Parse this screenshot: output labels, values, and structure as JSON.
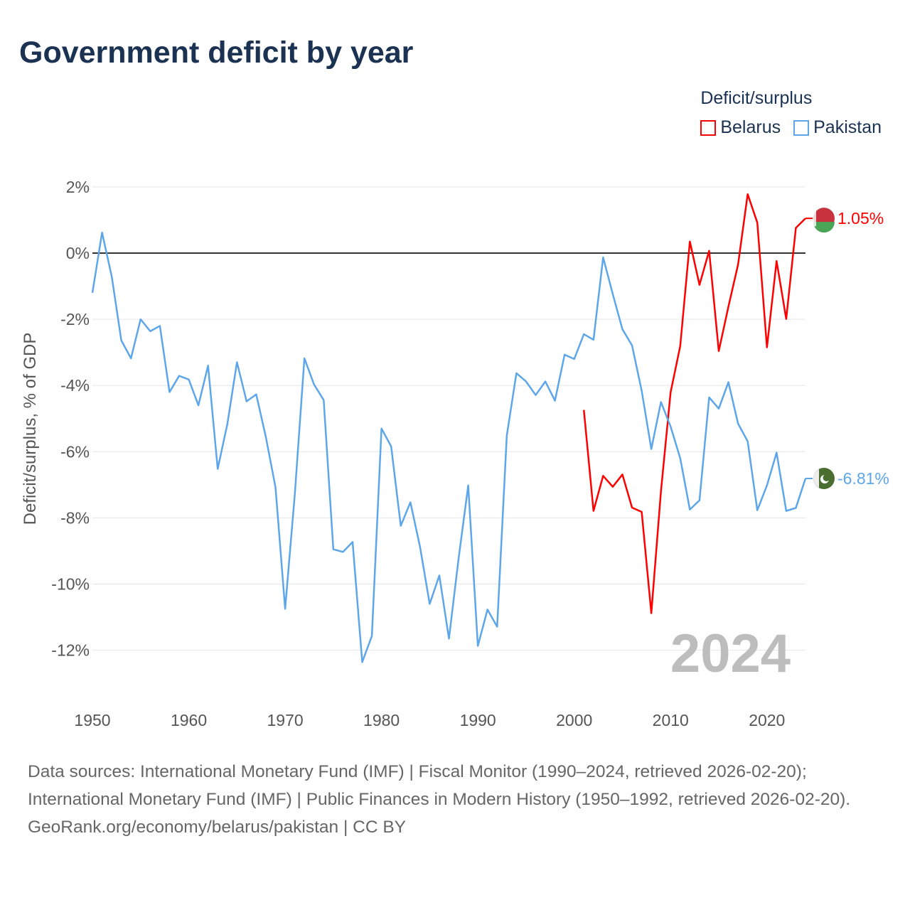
{
  "title": "Government deficit by year",
  "legend": {
    "title": "Deficit/surplus",
    "items": [
      {
        "label": "Belarus",
        "color": "#ff0000"
      },
      {
        "label": "Pakistan",
        "color": "#5ea6ea"
      }
    ]
  },
  "year_watermark": "2024",
  "footer": {
    "sources": "Data sources: International Monetary Fund (IMF) | Fiscal Monitor (1990–2024, retrieved 2026-02-20); International Monetary Fund (IMF) | Public Finances in Modern History (1950–1992, retrieved 2026-02-20).",
    "credit": "GeoRank.org/economy/belarus/pakistan | CC BY"
  },
  "chart_data": {
    "type": "line",
    "title": "Government deficit by year",
    "xlabel": "",
    "ylabel": "Deficit/surplus, % of GDP",
    "xlim": [
      1950,
      2024
    ],
    "ylim": [
      -13,
      2
    ],
    "x_ticks": [
      1950,
      1960,
      1970,
      1980,
      1990,
      2000,
      2010,
      2020
    ],
    "x_tick_labels": [
      "1950",
      "1960",
      "1970",
      "1980",
      "1990",
      "2000",
      "2010",
      "2020"
    ],
    "y_ticks": [
      2,
      0,
      -2,
      -4,
      -6,
      -8,
      -10,
      -12
    ],
    "y_tick_labels": [
      "2%",
      "0%",
      "-2%",
      "-4%",
      "-6%",
      "-8%",
      "-10%",
      "-12%"
    ],
    "grid": true,
    "legend_position": "top-right",
    "series": [
      {
        "name": "Belarus",
        "color": "#ff0000",
        "end_label": "1.05%",
        "start_year": 2001,
        "values": [
          -4.74,
          -7.79,
          -6.73,
          -7.06,
          -6.69,
          -7.69,
          -7.82,
          -10.88,
          -7.2,
          -4.21,
          -2.81,
          0.35,
          -0.96,
          0.07,
          -2.96,
          -1.62,
          -0.35,
          1.78,
          0.92,
          -2.85,
          -0.24,
          -1.99,
          0.76,
          1.05
        ]
      },
      {
        "name": "Pakistan",
        "color": "#5ea6ea",
        "end_label": "-6.81%",
        "start_year": 1950,
        "values": [
          -1.2,
          0.62,
          -0.7,
          -2.64,
          -3.18,
          -2.0,
          -2.36,
          -2.2,
          -4.2,
          -3.71,
          -3.82,
          -4.6,
          -3.4,
          -6.52,
          -5.17,
          -3.3,
          -4.48,
          -4.27,
          -5.56,
          -7.08,
          -10.75,
          -7.3,
          -3.18,
          -3.97,
          -4.44,
          -8.95,
          -9.03,
          -8.73,
          -12.36,
          -11.57,
          -5.3,
          -5.84,
          -8.24,
          -7.53,
          -8.88,
          -10.6,
          -9.74,
          -11.65,
          -9.23,
          -7.02,
          -11.87,
          -10.77,
          -11.29,
          -5.52,
          -3.63,
          -3.88,
          -4.29,
          -3.88,
          -4.46,
          -3.07,
          -3.2,
          -2.45,
          -2.62,
          -0.13,
          -1.24,
          -2.3,
          -2.79,
          -4.16,
          -5.92,
          -4.5,
          -5.24,
          -6.2,
          -7.75,
          -7.47,
          -4.36,
          -4.7,
          -3.9,
          -5.15,
          -5.69,
          -7.77,
          -7.02,
          -6.03,
          -7.79,
          -7.7,
          -6.81
        ]
      }
    ]
  }
}
